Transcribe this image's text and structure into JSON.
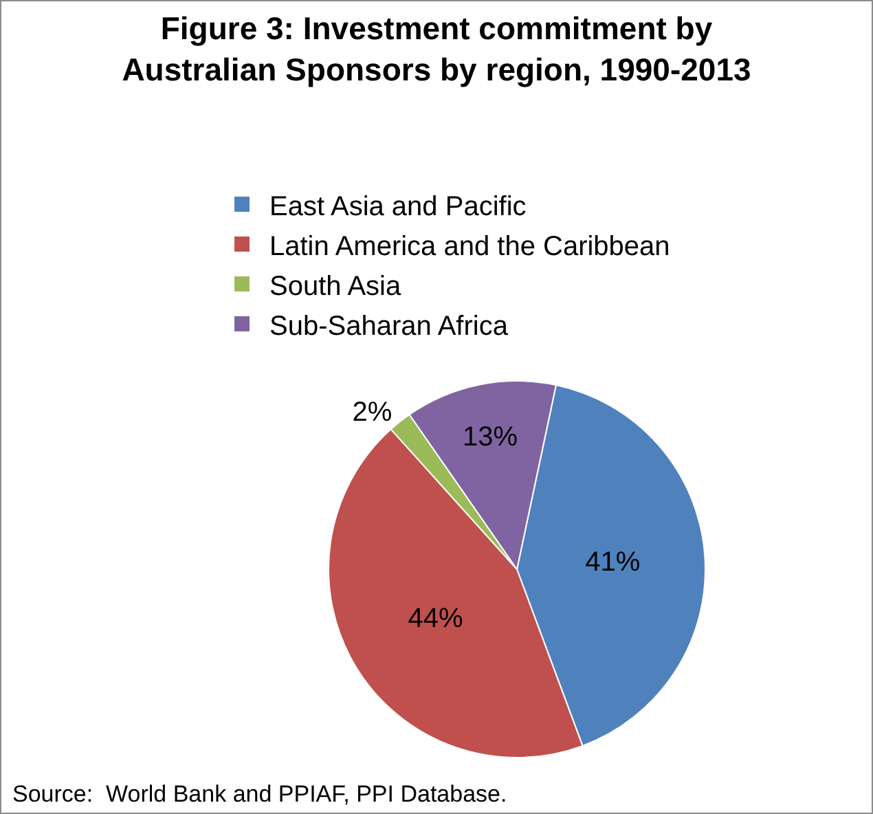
{
  "chart_data": {
    "type": "pie",
    "title": "Figure 3: Investment commitment by\nAustralian Sponsors by region, 1990-2013",
    "categories": [
      "East Asia and Pacific",
      "Latin America and the Caribbean",
      "South Asia",
      "Sub-Saharan Africa"
    ],
    "values": [
      41,
      44,
      2,
      13
    ],
    "value_labels": [
      "41%",
      "44%",
      "2%",
      "13%"
    ],
    "colors": [
      "#4f81bd",
      "#c0504d",
      "#9bbb59",
      "#8064a2"
    ],
    "legend": "top",
    "annotations": [
      "Source:  World Bank and PPIAF, PPI Database."
    ]
  }
}
